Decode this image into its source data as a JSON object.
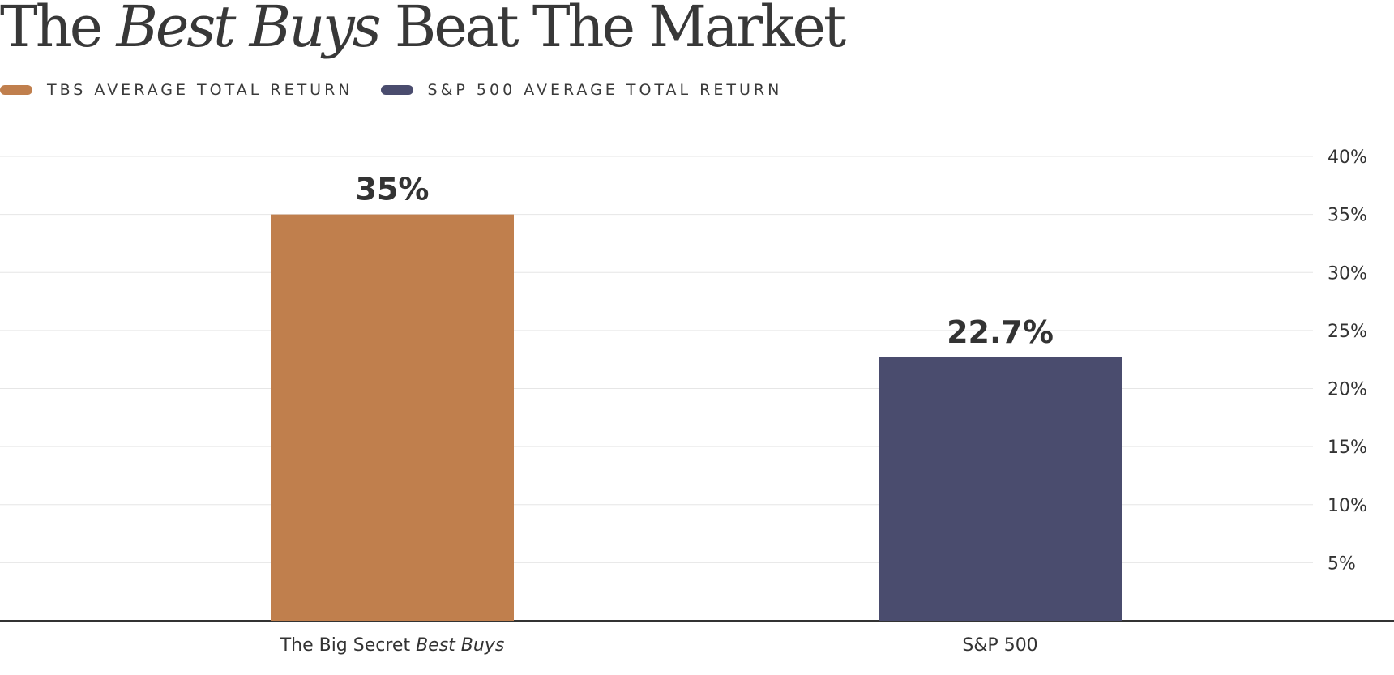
{
  "title": {
    "part1": "The ",
    "italic": "Best Buys",
    "part2": " Beat The Market"
  },
  "legend": [
    {
      "label": "TBS AVERAGE TOTAL RETURN",
      "color": "#c07f4d"
    },
    {
      "label": "S&P 500 AVERAGE TOTAL RETURN",
      "color": "#4a4c6e"
    }
  ],
  "categories": [
    {
      "prefix": "The Big Secret ",
      "italic": "Best Buys"
    },
    {
      "prefix": "S&P 500",
      "italic": ""
    }
  ],
  "chart_data": {
    "type": "bar",
    "title": "The Best Buys Beat The Market",
    "categories": [
      "The Big Secret Best Buys",
      "S&P 500"
    ],
    "values": [
      35,
      22.7
    ],
    "value_labels": [
      "35%",
      "22.7%"
    ],
    "colors": [
      "#c07f4d",
      "#4a4c6e"
    ],
    "ylim": [
      0,
      40
    ],
    "yticks": [
      5,
      10,
      15,
      20,
      25,
      30,
      35,
      40
    ],
    "ytick_labels": [
      "5%",
      "10%",
      "15%",
      "20%",
      "25%",
      "30%",
      "35%",
      "40%"
    ],
    "grid": true,
    "y_axis_position": "right",
    "legend_position": "top-left"
  }
}
